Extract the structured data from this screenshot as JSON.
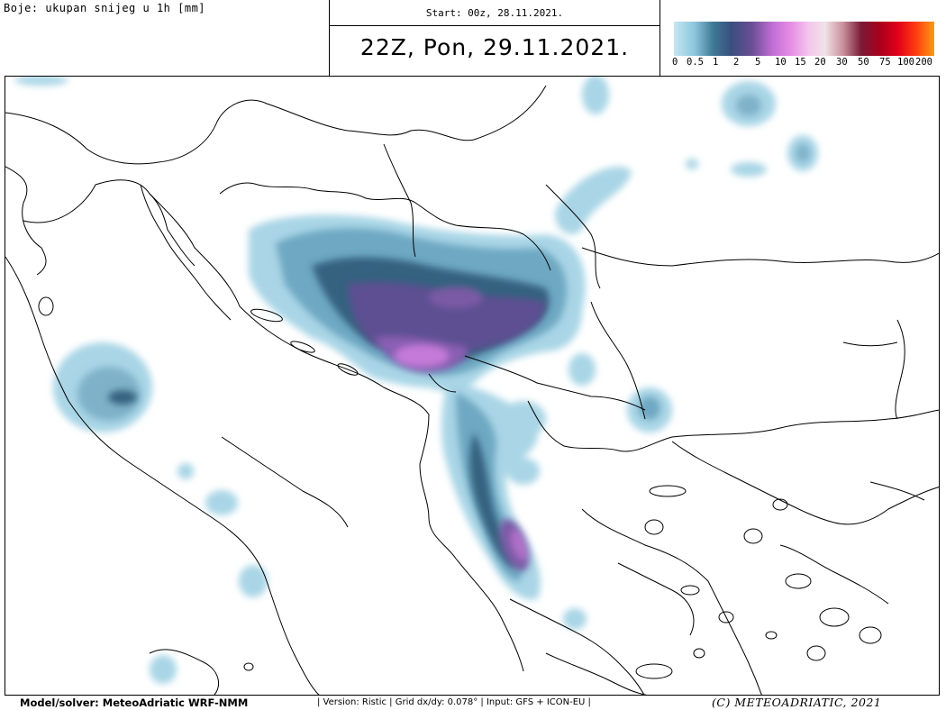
{
  "header": {
    "colors_label": "Boje: ukupan snijeg u 1h [mm]",
    "start": "Start: 00z, 28.11.2021.",
    "valid_time": "22Z, Pon, 29.11.2021."
  },
  "legend": {
    "ticks": [
      "0",
      "0.5",
      "1",
      "2",
      "5",
      "10",
      "15",
      "20",
      "30",
      "50",
      "75",
      "100",
      "200"
    ],
    "colors": [
      "#bfe3f0",
      "#8cc6dc",
      "#5f9fb8",
      "#2e6b87",
      "#3a4f7e",
      "#6a4e94",
      "#a45bbf",
      "#dc7ae0",
      "#f5b8ec",
      "#f3dde8",
      "#d6a7ae",
      "#8a1d35",
      "#c80018",
      "#ff2a10",
      "#ff7c0a"
    ]
  },
  "footer": {
    "model": "Model/solver: MeteoAdriatic WRF-NMM",
    "details": "| Version: Ristic | Grid dx/dy: 0.078° | Input: GFS + ICON-EU |",
    "copyright": "(C) METEOADRIATIC, 2021"
  }
}
